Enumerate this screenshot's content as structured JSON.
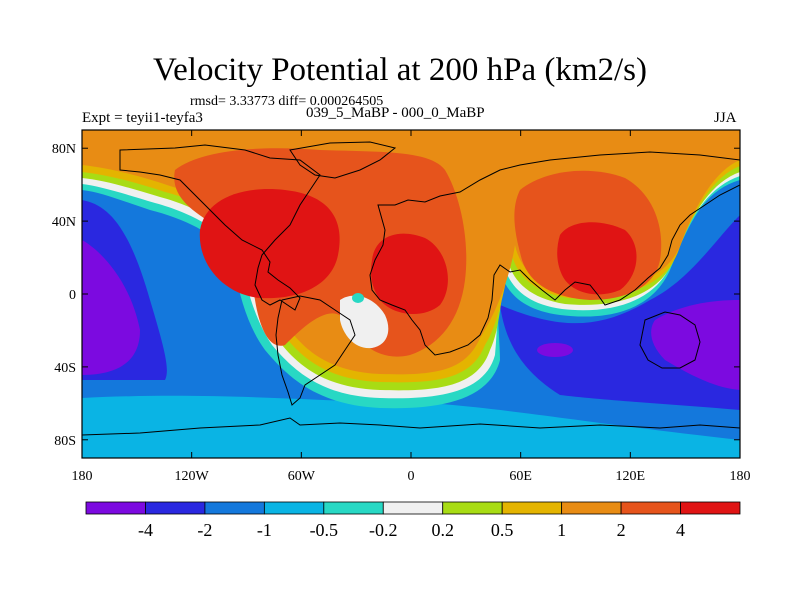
{
  "title": "Velocity Potential at 200 hPa (km2/s)",
  "rmsd_line": "rmsd= 3.33773  diff= 0.000264505",
  "expt": "Expt = teyii1-teyfa3",
  "comparison": "039_5_MaBP - 000_0_MaBP",
  "season": "JJA",
  "axes": {
    "lon_range": [
      -180,
      180
    ],
    "lat_range": [
      -90,
      90
    ],
    "x_ticks": [
      {
        "value": -180,
        "label": "180"
      },
      {
        "value": -120,
        "label": "120W"
      },
      {
        "value": -60,
        "label": "60W"
      },
      {
        "value": 0,
        "label": "0"
      },
      {
        "value": 60,
        "label": "60E"
      },
      {
        "value": 120,
        "label": "120E"
      },
      {
        "value": 180,
        "label": "180"
      }
    ],
    "y_ticks": [
      {
        "value": 80,
        "label": "80N"
      },
      {
        "value": 40,
        "label": "40N"
      },
      {
        "value": 0,
        "label": "0"
      },
      {
        "value": -40,
        "label": "40S"
      },
      {
        "value": -80,
        "label": "80S"
      }
    ]
  },
  "colorbar": {
    "colors": [
      "#7c0ae0",
      "#2a28e0",
      "#1478dc",
      "#0ab4e4",
      "#28d8c4",
      "#f0f0f0",
      "#a8dc14",
      "#e4b400",
      "#e88c14",
      "#e6541c",
      "#e01414"
    ],
    "labels": [
      "-4",
      "-2",
      "-1",
      "-0.5",
      "-0.2",
      "0.2",
      "0.5",
      "1",
      "2",
      "4"
    ]
  }
}
